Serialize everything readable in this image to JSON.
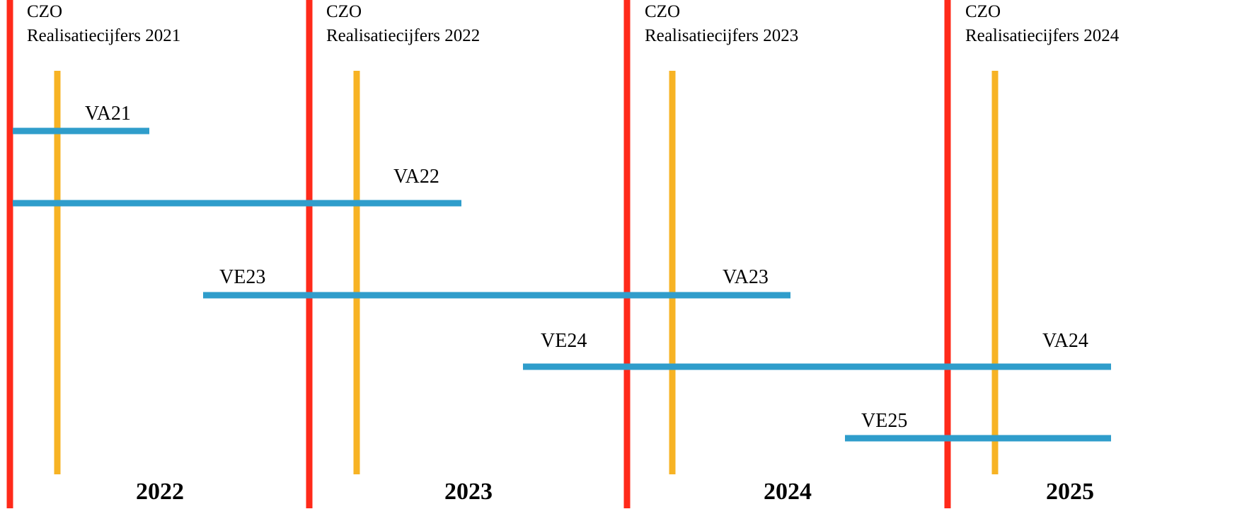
{
  "colors": {
    "red_line": "#ff2a1a",
    "orange_line": "#f7b324",
    "blue_bar": "#2f9dcb"
  },
  "periods": [
    {
      "header": "CZO",
      "subheader": "Realisatiecijfers 2021",
      "year": "2022"
    },
    {
      "header": "CZO",
      "subheader": "Realisatiecijfers 2022",
      "year": "2023"
    },
    {
      "header": "CZO",
      "subheader": "Realisatiecijfers 2023",
      "year": "2024"
    },
    {
      "header": "CZO",
      "subheader": "Realisatiecijfers 2024",
      "year": "2025"
    }
  ],
  "bars": [
    {
      "start_label": "",
      "end_label": "VA21"
    },
    {
      "start_label": "",
      "end_label": "VA22"
    },
    {
      "start_label": "VE23",
      "end_label": "VA23"
    },
    {
      "start_label": "VE24",
      "end_label": "VA24"
    },
    {
      "start_label": "VE25",
      "end_label": ""
    }
  ]
}
